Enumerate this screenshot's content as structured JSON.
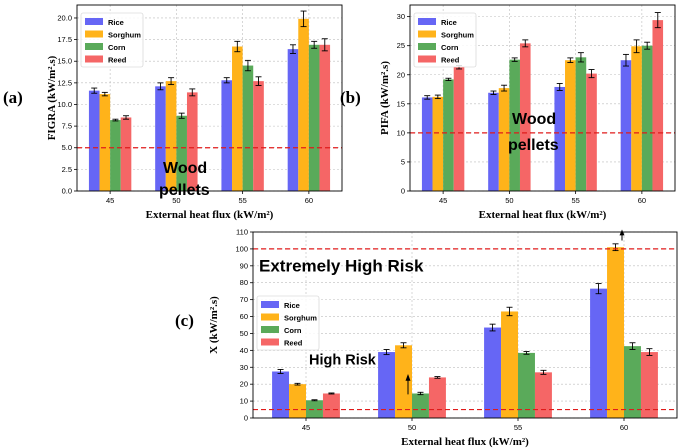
{
  "colors": {
    "Rice": "#6666f5",
    "Sorghum": "#ffb31a",
    "Corn": "#5aaa5a",
    "Reed": "#f56666",
    "threshold": "#e01b1b"
  },
  "chart_data": [
    {
      "id": "a",
      "panel_label": "(a)",
      "type": "bar",
      "xlabel": "External heat flux (kW/m²)",
      "ylabel": "FIGRA (kW/m².s)",
      "categories": [
        "45",
        "50",
        "55",
        "60"
      ],
      "ylim": [
        0,
        21.5
      ],
      "yticks": [
        0.0,
        2.5,
        5.0,
        7.5,
        10.0,
        12.5,
        15.0,
        17.5,
        20.0
      ],
      "ytick_labels": [
        "0.0",
        "2.5",
        "5.0",
        "7.5",
        "10.0",
        "12.5",
        "15.0",
        "17.5",
        "20.0"
      ],
      "grid": true,
      "legend_position": "top-left",
      "series": [
        {
          "name": "Rice",
          "values": [
            11.6,
            12.1,
            12.8,
            16.4
          ],
          "errors": [
            0.3,
            0.4,
            0.3,
            0.5
          ]
        },
        {
          "name": "Sorghum",
          "values": [
            11.2,
            12.7,
            16.7,
            19.9
          ],
          "errors": [
            0.2,
            0.4,
            0.6,
            0.9
          ]
        },
        {
          "name": "Corn",
          "values": [
            8.2,
            8.7,
            14.5,
            16.9
          ],
          "errors": [
            0.1,
            0.3,
            0.6,
            0.4
          ]
        },
        {
          "name": "Reed",
          "values": [
            8.5,
            11.4,
            12.7,
            16.9
          ],
          "errors": [
            0.2,
            0.4,
            0.5,
            0.7
          ]
        }
      ],
      "threshold": 5.0,
      "annotation": "Wood\npellets"
    },
    {
      "id": "b",
      "panel_label": "(b)",
      "type": "bar",
      "xlabel": "External heat flux (kW/m²)",
      "ylabel": "PIFA (kW/m².s)",
      "categories": [
        "45",
        "50",
        "55",
        "60"
      ],
      "ylim": [
        0,
        32
      ],
      "yticks": [
        0,
        5,
        10,
        15,
        20,
        25,
        30
      ],
      "ytick_labels": [
        "0",
        "5",
        "10",
        "15",
        "20",
        "25",
        "30"
      ],
      "grid": true,
      "legend_position": "top-left",
      "series": [
        {
          "name": "Rice",
          "values": [
            16.1,
            16.9,
            17.9,
            22.5
          ],
          "errors": [
            0.3,
            0.3,
            0.6,
            1.0
          ]
        },
        {
          "name": "Sorghum",
          "values": [
            16.2,
            17.7,
            22.5,
            24.9
          ],
          "errors": [
            0.3,
            0.5,
            0.4,
            1.1
          ]
        },
        {
          "name": "Corn",
          "values": [
            19.2,
            22.6,
            23.0,
            25.0
          ],
          "errors": [
            0.2,
            0.3,
            0.8,
            0.6
          ]
        },
        {
          "name": "Reed",
          "values": [
            21.3,
            25.4,
            20.2,
            29.4
          ],
          "errors": [
            0.3,
            0.6,
            0.7,
            1.3
          ]
        }
      ],
      "threshold": 10.0,
      "annotation": "Wood\npellets"
    },
    {
      "id": "c",
      "panel_label": "(c)",
      "type": "bar",
      "xlabel": "External heat flux (kW/m²)",
      "ylabel": "X (kW/m².s)",
      "categories": [
        "45",
        "50",
        "55",
        "60"
      ],
      "ylim": [
        0,
        110
      ],
      "yticks": [
        0,
        10,
        20,
        30,
        40,
        50,
        60,
        70,
        80,
        90,
        100,
        110
      ],
      "ytick_labels": [
        "0",
        "10",
        "20",
        "30",
        "40",
        "50",
        "60",
        "70",
        "80",
        "90",
        "100",
        "110"
      ],
      "grid": true,
      "legend_position": "center-left",
      "series": [
        {
          "name": "Rice",
          "values": [
            27.5,
            39.0,
            53.5,
            76.5
          ],
          "errors": [
            1.2,
            1.5,
            2.0,
            3.0
          ]
        },
        {
          "name": "Sorghum",
          "values": [
            20.0,
            43.0,
            63.0,
            101.0
          ],
          "errors": [
            0.5,
            1.5,
            2.5,
            2.0
          ]
        },
        {
          "name": "Corn",
          "values": [
            10.5,
            14.5,
            38.5,
            42.5
          ],
          "errors": [
            0.3,
            0.7,
            0.8,
            2.0
          ]
        },
        {
          "name": "Reed",
          "values": [
            14.5,
            24.0,
            27.0,
            39.0
          ],
          "errors": [
            0.3,
            0.5,
            1.2,
            2.0
          ]
        }
      ],
      "thresholds": [
        5,
        100
      ],
      "annotations": [
        "Extremely High Risk",
        "High Risk"
      ]
    }
  ]
}
